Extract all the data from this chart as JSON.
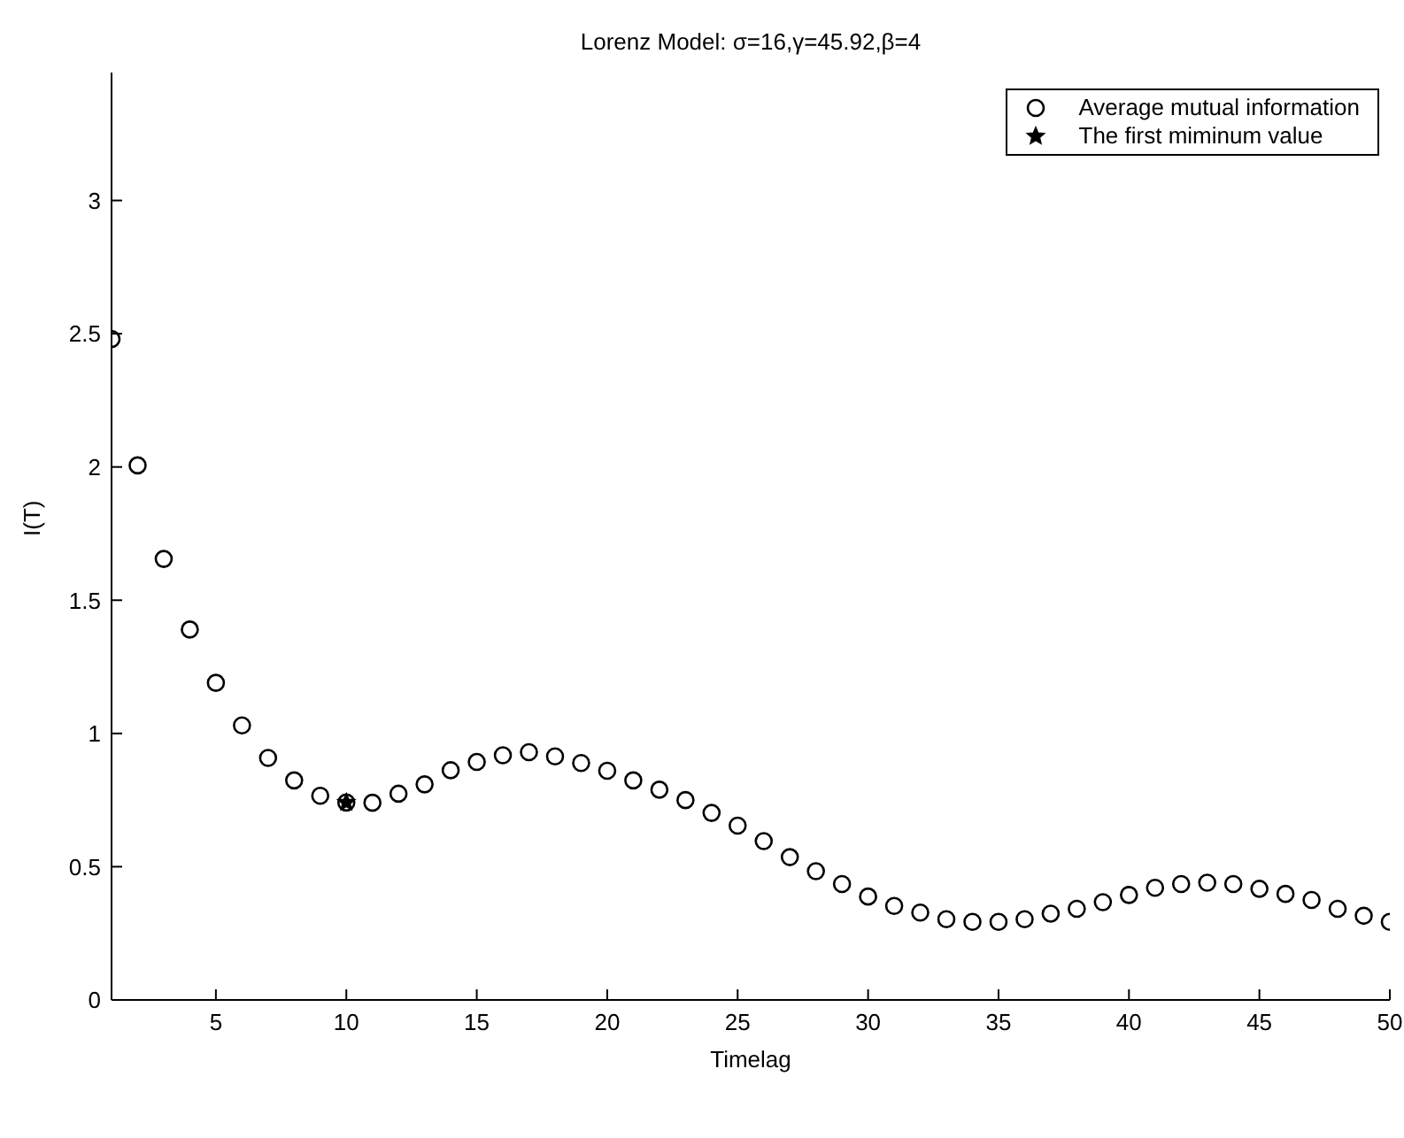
{
  "chart_data": {
    "type": "scatter",
    "title": "Lorenz Model: σ=16,γ=45.92,β=4",
    "xlabel": "Timelag",
    "ylabel": "I(T)",
    "xlim": [
      1,
      50
    ],
    "xticks": [
      5,
      10,
      15,
      20,
      25,
      30,
      35,
      40,
      45,
      50
    ],
    "ylim": [
      0,
      3.48
    ],
    "yticks": [
      0,
      0.5,
      1,
      1.5,
      2,
      2.5,
      3
    ],
    "grid": false,
    "legend": "top right",
    "series": [
      {
        "name": "Average mutual information",
        "color": "#000000",
        "marker": "circle",
        "x": [
          1,
          2,
          3,
          4,
          5,
          6,
          7,
          8,
          9,
          10,
          11,
          12,
          13,
          14,
          15,
          16,
          17,
          18,
          19,
          20,
          21,
          22,
          23,
          24,
          25,
          26,
          27,
          28,
          29,
          30,
          31,
          32,
          33,
          34,
          35,
          36,
          37,
          38,
          39,
          40,
          41,
          42,
          43,
          44,
          45,
          46,
          47,
          48,
          49,
          50
        ],
        "values": [
          2.48,
          2.006,
          1.655,
          1.39,
          1.19,
          1.03,
          0.908,
          0.824,
          0.766,
          0.741,
          0.74,
          0.774,
          0.809,
          0.862,
          0.893,
          0.918,
          0.93,
          0.914,
          0.889,
          0.86,
          0.824,
          0.789,
          0.75,
          0.702,
          0.654,
          0.596,
          0.536,
          0.483,
          0.435,
          0.388,
          0.353,
          0.328,
          0.303,
          0.293,
          0.293,
          0.303,
          0.324,
          0.342,
          0.367,
          0.394,
          0.421,
          0.435,
          0.44,
          0.435,
          0.417,
          0.398,
          0.375,
          0.342,
          0.316,
          0.293
        ]
      },
      {
        "name": "The first miminum value",
        "color": "#000000",
        "marker": "star",
        "x": [
          10
        ],
        "values": [
          0.741
        ]
      }
    ]
  }
}
